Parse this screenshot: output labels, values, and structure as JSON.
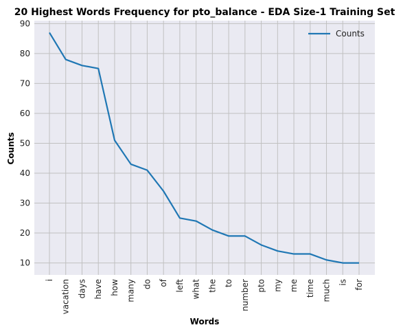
{
  "chart_data": {
    "type": "line",
    "title": "20 Highest Words Frequency for pto_balance - EDA Size-1 Training Set",
    "xlabel": "Words",
    "ylabel": "Counts",
    "categories": [
      "i",
      "vacation",
      "days",
      "have",
      "how",
      "many",
      "do",
      "of",
      "left",
      "what",
      "the",
      "to",
      "number",
      "pto",
      "my",
      "me",
      "time",
      "much",
      "is",
      "for"
    ],
    "series": [
      {
        "name": "Counts",
        "values": [
          87,
          78,
          76,
          75,
          51,
          43,
          41,
          34,
          25,
          24,
          21,
          19,
          19,
          16,
          14,
          13,
          13,
          11,
          10,
          10
        ],
        "color": "#1f77b4"
      }
    ],
    "ylim": [
      6,
      91
    ],
    "yticks": [
      10,
      20,
      30,
      40,
      50,
      60,
      70,
      80,
      90
    ],
    "grid": true,
    "legend": "top-right",
    "background": "#eaeaf2",
    "grid_color": "#c0c0c0"
  }
}
